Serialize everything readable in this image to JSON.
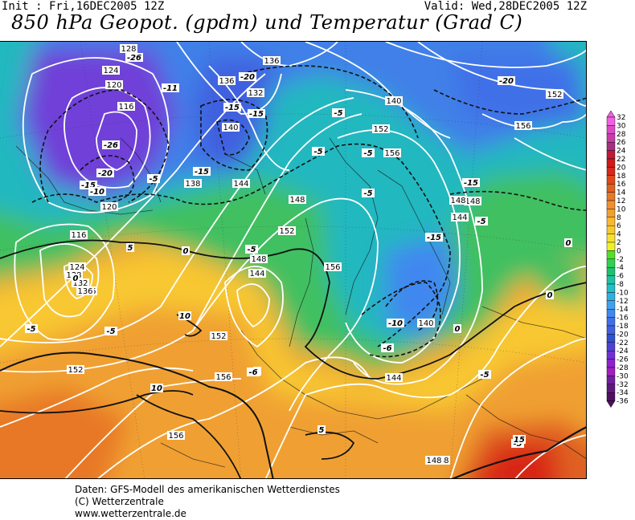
{
  "header": {
    "init": "Init : Fri,16DEC2005 12Z",
    "valid": "Valid: Wed,28DEC2005 12Z",
    "title": "850 hPa Geopot. (gpdm) und Temperatur (Grad C)"
  },
  "legend": {
    "ticks": [
      "32",
      "30",
      "28",
      "26",
      "24",
      "22",
      "20",
      "18",
      "16",
      "14",
      "12",
      "10",
      "8",
      "6",
      "4",
      "2",
      "0",
      "-2",
      "-4",
      "-6",
      "-8",
      "-10",
      "-12",
      "-14",
      "-16",
      "-18",
      "-20",
      "-22",
      "-24",
      "-26",
      "-28",
      "-30",
      "-32",
      "-34",
      "-36"
    ],
    "colors": [
      "#f060e0",
      "#e048c8",
      "#c83ca8",
      "#a83080",
      "#c01838",
      "#d01818",
      "#d82818",
      "#e04818",
      "#e06020",
      "#e87828",
      "#f09030",
      "#f0a030",
      "#f8b830",
      "#f8c830",
      "#f8e030",
      "#f0f028",
      "#50e030",
      "#30d050",
      "#20c070",
      "#20c0a0",
      "#20c0c8",
      "#30b0e0",
      "#40a0f0",
      "#4088f0",
      "#4070e8",
      "#4060e0",
      "#3050d0",
      "#5040d8",
      "#7030d8",
      "#9020d0",
      "#a020c0",
      "#7020a0",
      "#601880",
      "#501060"
    ]
  },
  "map": {
    "geopotential_labels": [
      "128",
      "124",
      "120",
      "116",
      "136",
      "132",
      "140",
      "136",
      "138",
      "144",
      "148",
      "152",
      "156",
      "148",
      "144",
      "136",
      "132",
      "128",
      "124",
      "120",
      "116",
      "140",
      "144",
      "148",
      "152",
      "152",
      "156",
      "156",
      "148",
      "148",
      "144",
      "140",
      "136",
      "152",
      "156",
      "148",
      "156",
      "152"
    ],
    "temperature_labels": [
      "-26",
      "-11",
      "-20",
      "-15",
      "-15",
      "-5",
      "-20",
      "-15",
      "-5",
      "-5",
      "-26",
      "-20",
      "-15",
      "-10",
      "-5",
      "-15",
      "-5",
      "0",
      "-15",
      "-5",
      "0",
      "-5",
      "0",
      "5",
      "0",
      "-5",
      "-10",
      "-6",
      "0",
      "-5",
      "10",
      "-5",
      "10",
      "5",
      "-6",
      "5",
      "-5",
      "15",
      "5"
    ]
  },
  "credits": {
    "line1": "Daten: GFS-Modell des amerikanischen Wetterdienstes",
    "line2": "(C) Wetterzentrale",
    "line3": "www.wetterzentrale.de"
  }
}
